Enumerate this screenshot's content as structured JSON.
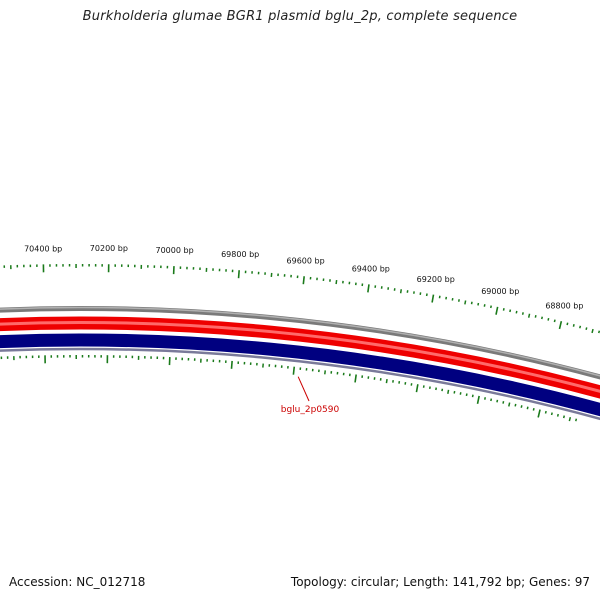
{
  "title": "Burkholderia glumae BGR1 plasmid bglu_2p, complete sequence",
  "footer": {
    "accession_label": "Accession:",
    "accession": "NC_012718",
    "topology_text": "Topology: circular; Length: 141,792 bp; Genes: 97"
  },
  "ruler": {
    "labels": [
      "70400 bp",
      "70200 bp",
      "70000 bp",
      "69800 bp",
      "69600 bp",
      "69400 bp",
      "69200 bp",
      "69000 bp",
      "68800 bp"
    ]
  },
  "genes": [
    {
      "name": "bglu_2p0590"
    }
  ],
  "colors": {
    "tick": "#1a7a1a",
    "forward_strand": "#ee0000",
    "reverse_strand": "#000080",
    "gc_ring": "#808080",
    "gene_label": "#cc0000"
  }
}
